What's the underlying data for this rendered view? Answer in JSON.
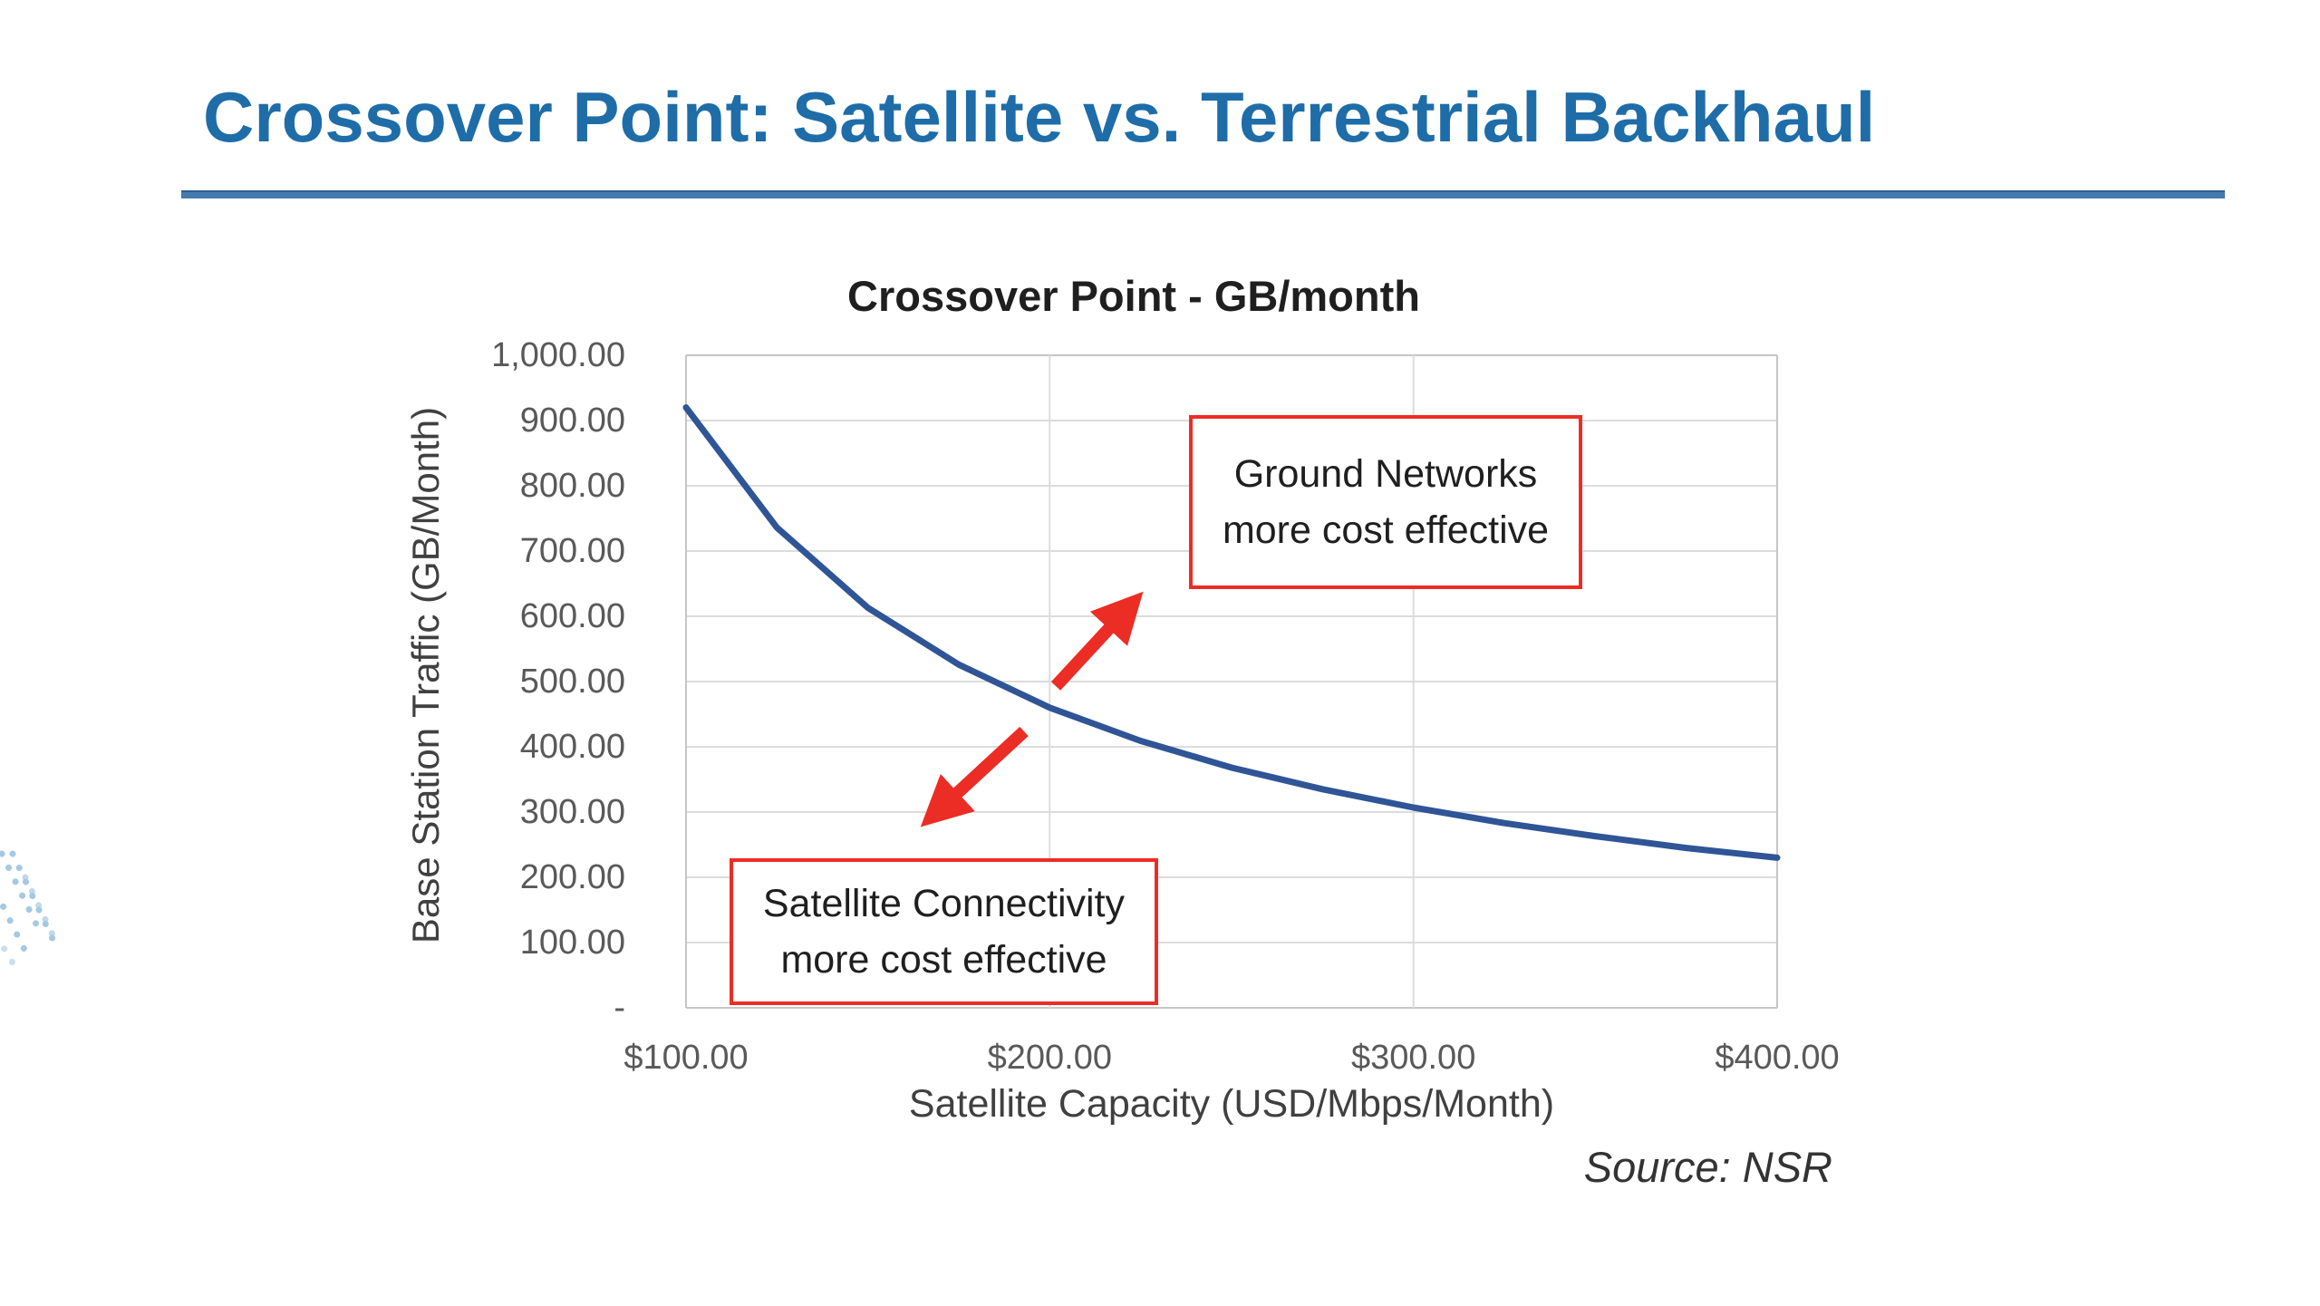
{
  "slide": {
    "title": "Crossover Point: Satellite vs. Terrestrial Backhaul",
    "source_note": "Source: NSR"
  },
  "chart_data": {
    "type": "line",
    "title": "Crossover Point - GB/month",
    "xlabel": "Satellite Capacity (USD/Mbps/Month)",
    "ylabel": "Base Station Traffic (GB/Month)",
    "xlim": [
      100,
      400
    ],
    "ylim": [
      0,
      1000
    ],
    "grid": true,
    "legend": "none",
    "x_ticks": [
      {
        "value": 100,
        "label": "$100.00"
      },
      {
        "value": 200,
        "label": "$200.00"
      },
      {
        "value": 300,
        "label": "$300.00"
      },
      {
        "value": 400,
        "label": "$400.00"
      }
    ],
    "y_ticks": [
      {
        "value": 0,
        "label": "-"
      },
      {
        "value": 100,
        "label": "100.00"
      },
      {
        "value": 200,
        "label": "200.00"
      },
      {
        "value": 300,
        "label": "300.00"
      },
      {
        "value": 400,
        "label": "400.00"
      },
      {
        "value": 500,
        "label": "500.00"
      },
      {
        "value": 600,
        "label": "600.00"
      },
      {
        "value": 700,
        "label": "700.00"
      },
      {
        "value": 800,
        "label": "800.00"
      },
      {
        "value": 900,
        "label": "900.00"
      },
      {
        "value": 1000,
        "label": "1,000.00"
      }
    ],
    "series": [
      {
        "color": "#2f5597",
        "x": [
          100,
          125,
          150,
          175,
          200,
          225,
          250,
          275,
          300,
          325,
          350,
          375,
          400
        ],
        "y": [
          920,
          736,
          613,
          526,
          460,
          409,
          368,
          335,
          307,
          283,
          263,
          245,
          230
        ]
      }
    ],
    "annotations": {
      "ground": {
        "line1": "Ground Networks",
        "line2": "more cost effective",
        "arrow": "up-right"
      },
      "satellite": {
        "line1": "Satellite Connectivity",
        "line2": "more cost effective",
        "arrow": "down-left"
      }
    }
  },
  "colors": {
    "title_blue": "#1e6da8",
    "underline_blue": "#447aad",
    "curve_blue": "#2f5597",
    "annotation_red": "#ec2d25",
    "tick_gray": "#595959",
    "axis_title_gray": "#404040",
    "gridline_gray": "#dcdcdc",
    "plot_border_gray": "#c6c6c6",
    "watermark_blue": "#8fbcdc"
  }
}
